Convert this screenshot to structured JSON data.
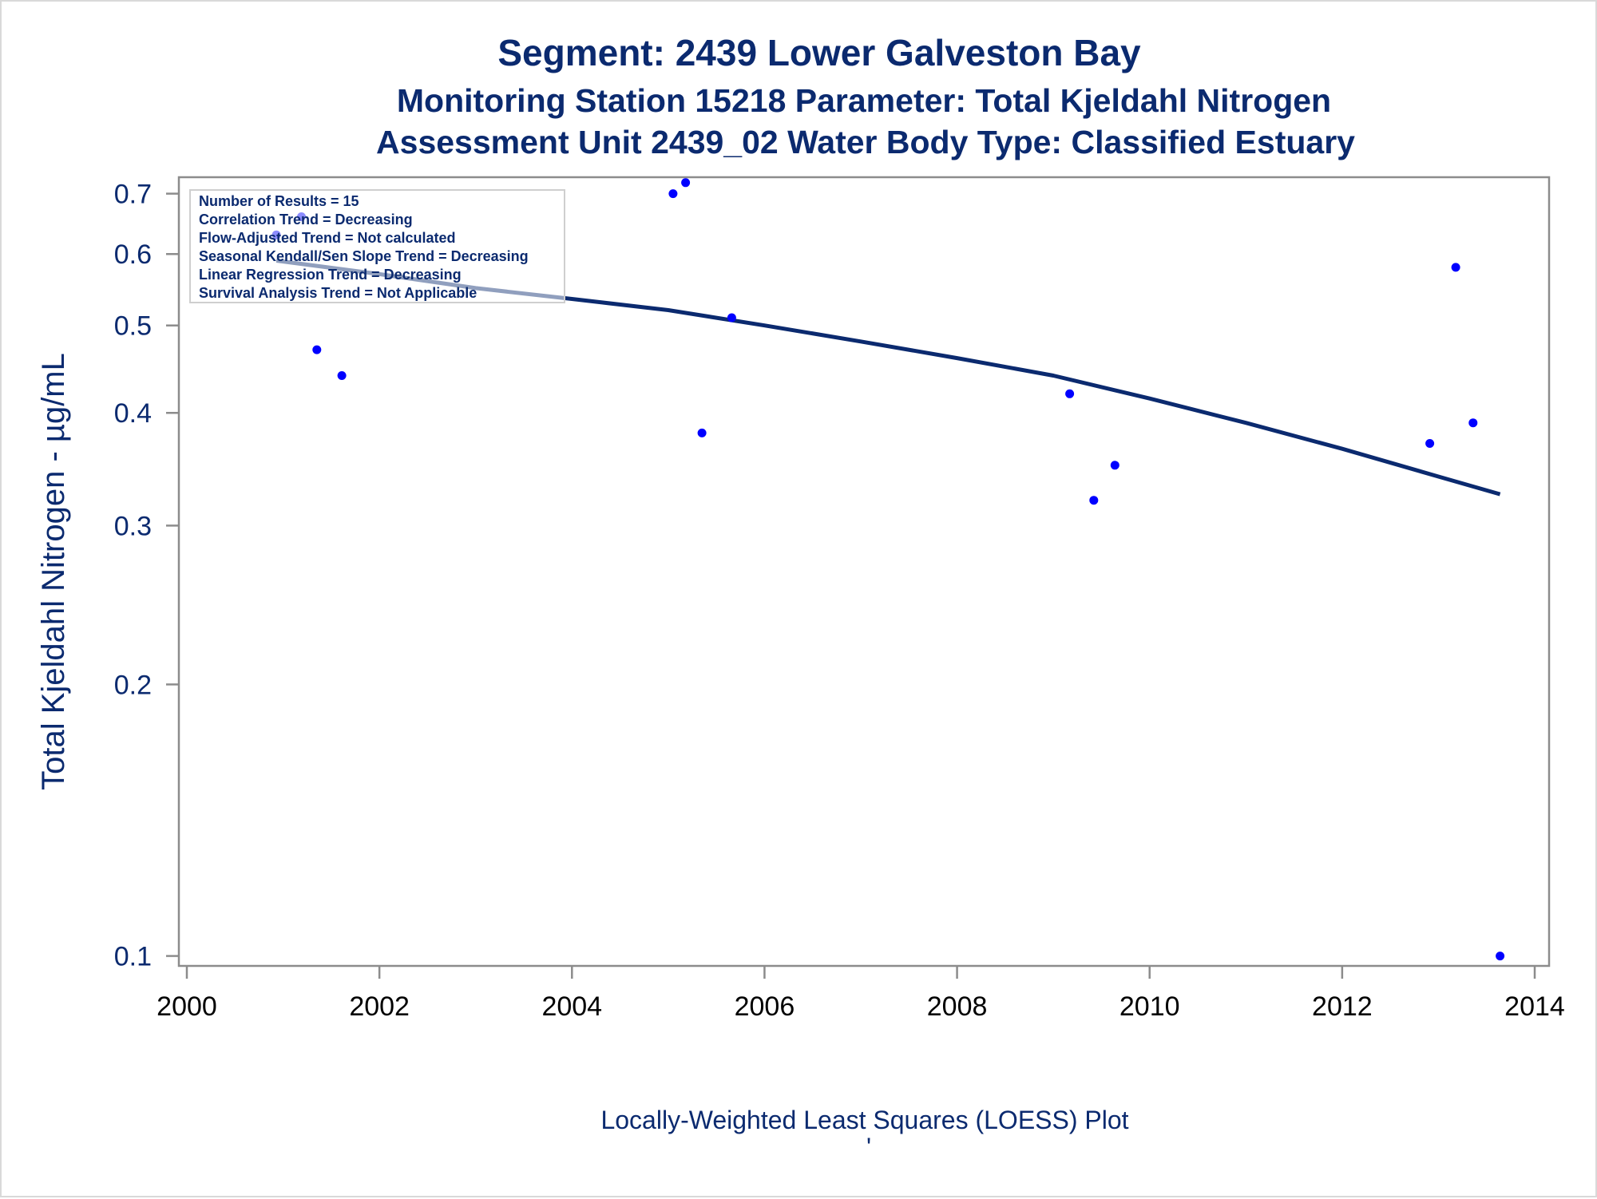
{
  "chart_data": {
    "type": "scatter",
    "title": "Segment: 2439  Lower Galveston Bay",
    "subtitle": "Monitoring Station 15218 Parameter: Total Kjeldahl Nitrogen",
    "subtitle2": "Assessment Unit 2439_02   Water Body Type: Classified Estuary",
    "ylabel": "Total Kjeldahl Nitrogen -  µg/mL",
    "xlabel": "",
    "footnote": "Locally-Weighted Least Squares (LOESS) Plot",
    "footnote_mark": "'",
    "y_scale": "log",
    "xlim": [
      2000,
      2014
    ],
    "ylim": [
      0.0975,
      0.73
    ],
    "x_ticks": [
      2000,
      2002,
      2004,
      2006,
      2008,
      2010,
      2012,
      2014
    ],
    "y_ticks": [
      0.1,
      0.2,
      0.3,
      0.4,
      0.5,
      0.6,
      0.7
    ],
    "grid": false,
    "point_color": "#0000ff",
    "line_color": "#0b2a6f",
    "text_color": "#0b2a6f",
    "stats_box": [
      "Number of Results = 15",
      "Correlation Trend = Decreasing",
      "Flow-Adjusted Trend = Not calculated",
      "Seasonal Kendall/Sen Slope Trend = Decreasing",
      "Linear Regression Trend = Decreasing",
      "Survival Analysis Trend = Not Applicable"
    ],
    "series": [
      {
        "kind": "points",
        "x": [
          2000.93,
          2001.19,
          2001.35,
          2001.61,
          2005.05,
          2005.18,
          2005.35,
          2005.66,
          2009.17,
          2009.42,
          2009.64,
          2012.91,
          2013.18,
          2013.36,
          2013.64
        ],
        "y": [
          0.63,
          0.66,
          0.47,
          0.44,
          0.7,
          0.72,
          0.38,
          0.51,
          0.42,
          0.32,
          0.35,
          0.37,
          0.58,
          0.39,
          0.1
        ]
      },
      {
        "kind": "loess",
        "x": [
          2000.93,
          2002.0,
          2003.0,
          2004.0,
          2005.0,
          2006.0,
          2007.0,
          2008.0,
          2009.0,
          2010.0,
          2011.0,
          2012.0,
          2013.0,
          2013.64
        ],
        "y": [
          0.59,
          0.57,
          0.55,
          0.535,
          0.52,
          0.5,
          0.48,
          0.46,
          0.44,
          0.415,
          0.39,
          0.365,
          0.34,
          0.325
        ]
      }
    ]
  }
}
